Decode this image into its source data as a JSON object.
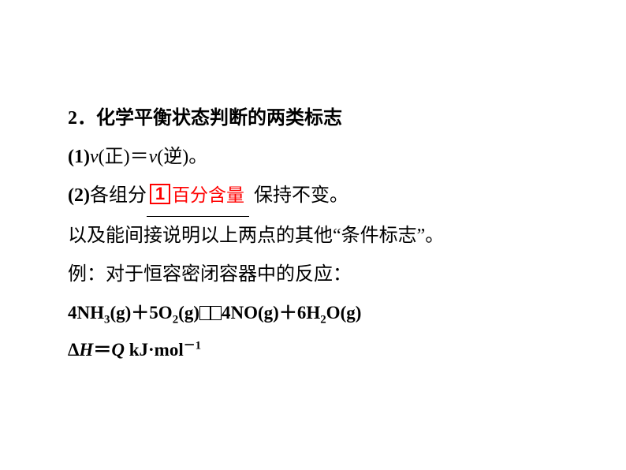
{
  "colors": {
    "text": "#000000",
    "highlight": "#ff0000",
    "background": "#ffffff"
  },
  "typography": {
    "body_fontsize": 24,
    "body_family_cjk": "SimSun",
    "latin_family": "Times New Roman",
    "line_height_ratio": 2.05,
    "bold_weight": 700,
    "boxed_num_fontsize": 22,
    "red_text_fontsize": 23,
    "equation_fontsize": 23,
    "sub_sup_scale": 0.65
  },
  "heading": {
    "number": "2",
    "dot": "．",
    "title": "化学平衡状态判断的两类标志"
  },
  "point1": {
    "label": "(1)",
    "v_sym": "v",
    "lp1": "(",
    "forward": "正",
    "rp1": ")",
    "eq": "＝",
    "lp2": "(",
    "reverse": "逆",
    "rp2": ")",
    "period": "。"
  },
  "point2": {
    "label": "(2)",
    "pre_text": "各组分",
    "boxed": "1",
    "fill_text": "百分含量",
    "post_text": " 保持不变。"
  },
  "line3": "以及能间接说明以上两点的其他“条件标志”。",
  "line4": "例：对于恒容密闭容器中的反应：",
  "equation": {
    "coef1": "4",
    "sp1": "NH",
    "sub1": "3",
    "g": "(g)",
    "plus": "＋",
    "coef2": "5",
    "sp2": "O",
    "sub2": "2",
    "coef3": "4",
    "sp3": "NO",
    "coef4": "6",
    "sp4": "H",
    "sub4": "2",
    "sp4b": "O"
  },
  "enthalpy": {
    "delta": "Δ",
    "H": "H",
    "eq": "＝",
    "Q": "Q",
    "unit_a": " kJ",
    "dot": "·",
    "unit_b": "mol",
    "exp": "－1"
  }
}
